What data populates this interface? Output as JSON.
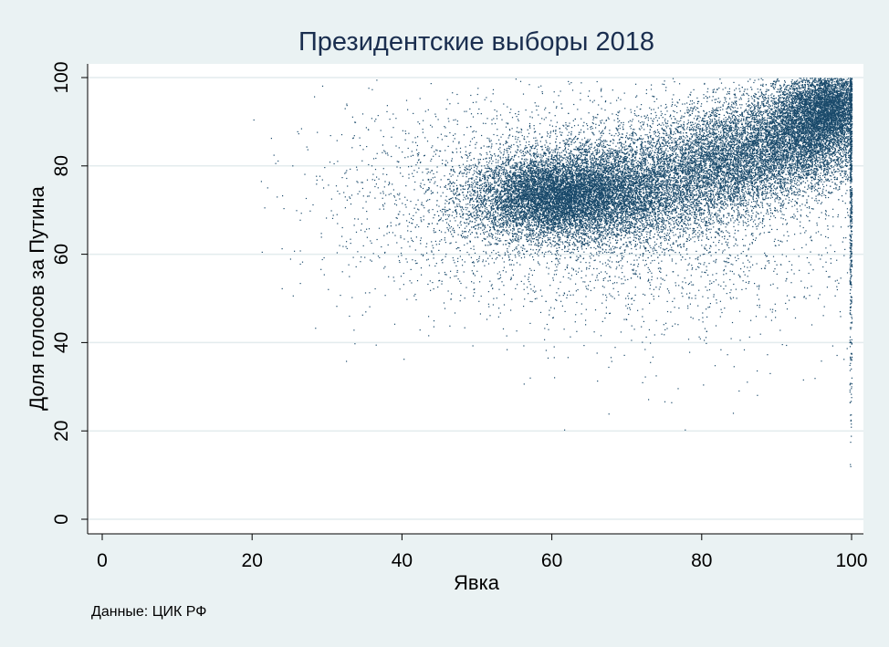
{
  "chart_data": {
    "type": "scatter",
    "title": "Президентские выборы 2018",
    "xlabel": "Явка",
    "ylabel": "Доля голосов за Путина",
    "note": "Данные: ЦИК РФ",
    "xlim": [
      0,
      100
    ],
    "ylim": [
      0,
      100
    ],
    "xticks": [
      "0",
      "20",
      "40",
      "60",
      "80",
      "100"
    ],
    "yticks": [
      "0",
      "20",
      "40",
      "60",
      "80",
      "100"
    ],
    "grid": true,
    "point_color": "#1a4a6b",
    "clusters": [
      {
        "cx": 60,
        "cy": 73,
        "sx": 5.5,
        "sy": 4.5,
        "n": 9000
      },
      {
        "cx": 70,
        "cy": 75,
        "sx": 7,
        "sy": 6,
        "n": 6000
      },
      {
        "cx": 84,
        "cy": 82,
        "sx": 5,
        "sy": 6,
        "n": 4500
      },
      {
        "cx": 94,
        "cy": 88,
        "sx": 4,
        "sy": 6,
        "n": 6500
      },
      {
        "cx": 97,
        "cy": 94,
        "sx": 2.5,
        "sy": 4,
        "n": 3000
      },
      {
        "cx": 65,
        "cy": 72,
        "sx": 14,
        "sy": 12,
        "n": 3000
      },
      {
        "cx": 80,
        "cy": 70,
        "sx": 14,
        "sy": 18,
        "n": 1200
      },
      {
        "cx": 42,
        "cy": 72,
        "sx": 9,
        "sy": 12,
        "n": 500
      }
    ],
    "edge_cluster": {
      "x": 100,
      "ymin": 5,
      "ymax": 100,
      "n": 600
    }
  }
}
